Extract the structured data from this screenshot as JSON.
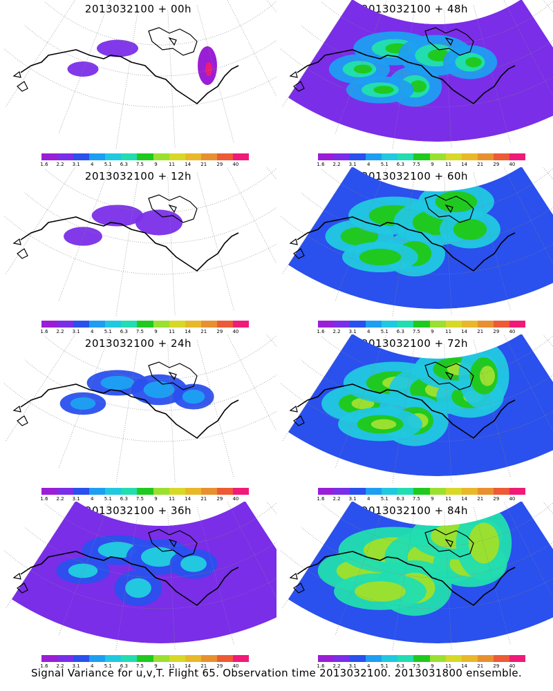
{
  "panels": [
    {
      "title": "2013032100 + 00h",
      "intensity": 0
    },
    {
      "title": "2013032100 + 48h",
      "intensity": 4
    },
    {
      "title": "2013032100 + 12h",
      "intensity": 1
    },
    {
      "title": "2013032100 + 60h",
      "intensity": 5
    },
    {
      "title": "2013032100 + 24h",
      "intensity": 2
    },
    {
      "title": "2013032100 + 72h",
      "intensity": 6
    },
    {
      "title": "2013032100 + 36h",
      "intensity": 3
    },
    {
      "title": "2013032100 + 84h",
      "intensity": 7
    }
  ],
  "colorbar": {
    "colors": [
      "#9a1ed6",
      "#7a2ee8",
      "#2a50ee",
      "#1e9ef2",
      "#21c8e0",
      "#22ddb0",
      "#20c920",
      "#9ae030",
      "#d8d828",
      "#e8b82a",
      "#e89030",
      "#ec5a36",
      "#f01a78"
    ],
    "labels": [
      "1.6",
      "2.2",
      "3.1",
      "4",
      "5.1",
      "6.3",
      "7.5",
      "9",
      "11",
      "14",
      "21",
      "29",
      "40"
    ]
  },
  "footer": "Signal Variance for u,v,T. Flight 65. Observation time 2013032100. 2013031800 ensemble."
}
